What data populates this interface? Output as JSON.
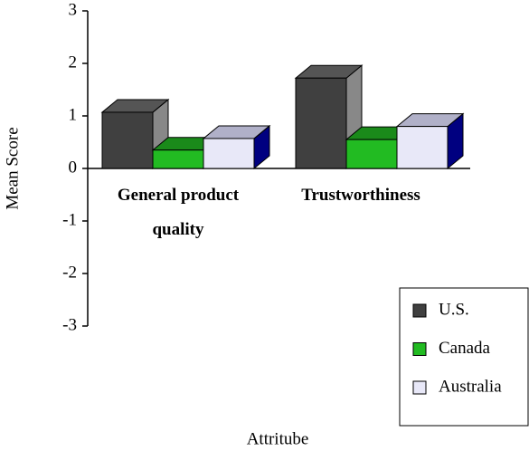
{
  "chart_data": {
    "type": "bar3d",
    "y_label": "Mean Score",
    "x_label": "Attritube",
    "categories": [
      "General product quality",
      "Trustworthiness"
    ],
    "series": [
      {
        "name": "U.S.",
        "color": "#404040",
        "values": [
          1.07,
          1.72
        ]
      },
      {
        "name": "Canada",
        "color": "#22bb22",
        "values": [
          0.35,
          0.55
        ]
      },
      {
        "name": "Australia",
        "color": "#e8e8f8",
        "values": [
          0.57,
          0.8
        ]
      }
    ],
    "ylim": [
      -3,
      3
    ],
    "yticks": [
      -3,
      -2,
      -1,
      0,
      1,
      2,
      3
    ],
    "legend": "lower right"
  }
}
